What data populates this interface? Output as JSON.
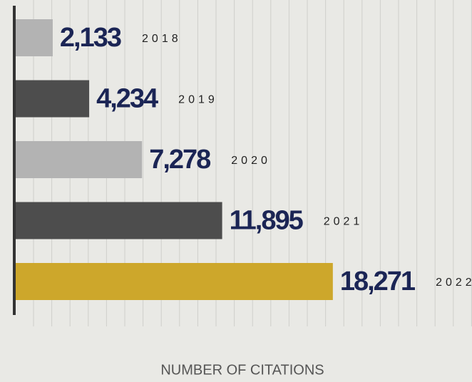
{
  "chart_data": {
    "type": "barh",
    "xlabel": "NUMBER OF CITATIONS",
    "categories": [
      "2018",
      "2019",
      "2020",
      "2021",
      "2022"
    ],
    "values": [
      2133,
      4234,
      7278,
      11895,
      18271
    ],
    "value_labels": [
      "2,133",
      "4,234",
      "7,278",
      "11,895",
      "18,271"
    ],
    "colors": [
      "#b3b3b3",
      "#4d4d4d",
      "#b3b3b3",
      "#4d4d4d",
      "#cda72b"
    ],
    "xlim": [
      0,
      26000
    ]
  }
}
